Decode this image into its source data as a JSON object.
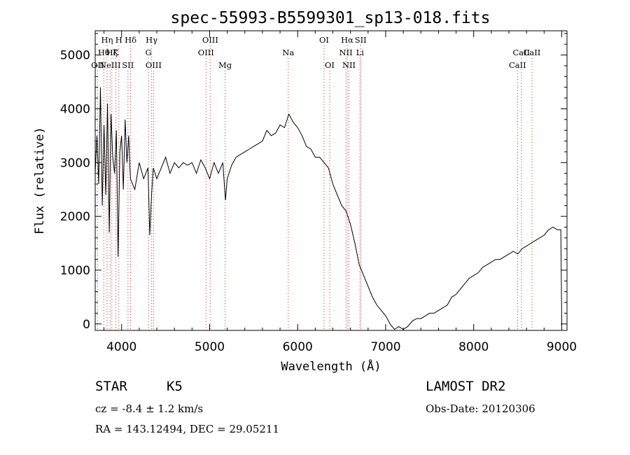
{
  "chart_data": {
    "type": "line",
    "title": "spec-55993-B5599301_sp13-018.fits",
    "xlabel": "Wavelength (Å)",
    "ylabel": "Flux (relative)",
    "xlim": [
      3700,
      9060
    ],
    "ylim": [
      -120,
      5450
    ],
    "xticks": [
      4000,
      5000,
      6000,
      7000,
      8000,
      9000
    ],
    "yticks": [
      0,
      1000,
      2000,
      3000,
      4000,
      5000
    ],
    "grid": false,
    "series": [
      {
        "color": "#000000",
        "x": [
          3700,
          3720,
          3740,
          3760,
          3780,
          3800,
          3820,
          3840,
          3860,
          3880,
          3900,
          3920,
          3940,
          3960,
          3980,
          4000,
          4020,
          4040,
          4060,
          4080,
          4100,
          4150,
          4200,
          4250,
          4300,
          4320,
          4340,
          4360,
          4400,
          4450,
          4500,
          4550,
          4600,
          4650,
          4700,
          4750,
          4800,
          4850,
          4900,
          4950,
          5000,
          5050,
          5100,
          5150,
          5180,
          5200,
          5250,
          5300,
          5350,
          5400,
          5450,
          5500,
          5550,
          5600,
          5650,
          5700,
          5750,
          5800,
          5850,
          5900,
          5950,
          6000,
          6050,
          6100,
          6150,
          6200,
          6250,
          6300,
          6350,
          6400,
          6450,
          6500,
          6550,
          6600,
          6650,
          6700,
          6750,
          6800,
          6850,
          6900,
          6950,
          7000,
          7050,
          7100,
          7150,
          7200,
          7250,
          7300,
          7350,
          7400,
          7450,
          7500,
          7550,
          7600,
          7650,
          7700,
          7750,
          7800,
          7850,
          7900,
          7950,
          8000,
          8050,
          8100,
          8150,
          8200,
          8250,
          8300,
          8350,
          8400,
          8450,
          8500,
          8550,
          8600,
          8650,
          8700,
          8750,
          8800,
          8850,
          8900,
          8950,
          8990,
          9000
        ],
        "y": [
          2800,
          3500,
          2600,
          4400,
          2200,
          3700,
          2400,
          4100,
          1700,
          3900,
          3100,
          2800,
          3600,
          1250,
          3200,
          3500,
          2500,
          3800,
          3000,
          3500,
          2700,
          2500,
          3000,
          2700,
          2900,
          1650,
          2400,
          2900,
          2700,
          2900,
          3100,
          2800,
          3000,
          2900,
          3000,
          2950,
          3000,
          2800,
          3050,
          2900,
          2700,
          3000,
          2800,
          3000,
          2300,
          2700,
          2950,
          3100,
          3150,
          3200,
          3250,
          3300,
          3350,
          3400,
          3600,
          3500,
          3550,
          3700,
          3650,
          3900,
          3750,
          3650,
          3500,
          3300,
          3250,
          3100,
          3100,
          3000,
          2900,
          2600,
          2400,
          2200,
          2100,
          1850,
          1500,
          1100,
          900,
          700,
          500,
          350,
          250,
          150,
          0,
          -100,
          -50,
          -100,
          -50,
          50,
          100,
          100,
          150,
          200,
          200,
          250,
          300,
          350,
          500,
          550,
          650,
          750,
          850,
          900,
          950,
          1050,
          1100,
          1150,
          1200,
          1200,
          1250,
          1300,
          1350,
          1300,
          1400,
          1450,
          1500,
          1550,
          1600,
          1650,
          1750,
          1800,
          1750,
          1750,
          0
        ]
      }
    ],
    "line_markers": [
      {
        "x": 3727,
        "label": "OII",
        "row": 3
      },
      {
        "x": 3798,
        "label": "Hθ",
        "row": 2
      },
      {
        "x": 3835,
        "label": "Hη",
        "row": 1
      },
      {
        "x": 3869,
        "label": "NeIII",
        "row": 3
      },
      {
        "x": 3889,
        "label": "Hζ",
        "row": 2
      },
      {
        "x": 3934,
        "label": "K",
        "row": 2
      },
      {
        "x": 3969,
        "label": "H",
        "row": 1
      },
      {
        "x": 4072,
        "label": "SII",
        "row": 3
      },
      {
        "x": 4102,
        "label": "Hδ",
        "row": 1
      },
      {
        "x": 4305,
        "label": "G",
        "row": 2
      },
      {
        "x": 4341,
        "label": "Hγ",
        "row": 1
      },
      {
        "x": 4363,
        "label": "OIII",
        "row": 3
      },
      {
        "x": 4959,
        "label": "OIII",
        "row": 2
      },
      {
        "x": 5007,
        "label": "OIII",
        "row": 1
      },
      {
        "x": 5176,
        "label": "Mg",
        "row": 3
      },
      {
        "x": 5893,
        "label": "Na",
        "row": 2
      },
      {
        "x": 6300,
        "label": "OI",
        "row": 1
      },
      {
        "x": 6364,
        "label": "OI",
        "row": 3
      },
      {
        "x": 6548,
        "label": "NII",
        "row": 2
      },
      {
        "x": 6563,
        "label": "Hα",
        "row": 1
      },
      {
        "x": 6583,
        "label": "NII",
        "row": 3
      },
      {
        "x": 6708,
        "label": "Li",
        "row": 2
      },
      {
        "x": 6716,
        "label": "SII",
        "row": 1
      },
      {
        "x": 8498,
        "label": "CaII",
        "row": 3
      },
      {
        "x": 8542,
        "label": "CaII",
        "row": 2
      },
      {
        "x": 8662,
        "label": "CaII",
        "row": 2
      }
    ]
  },
  "info": {
    "object_class": "STAR",
    "subclass": "K5",
    "redshift": "cz = -8.4 ± 1.2 km/s",
    "coords": "RA = 143.12494, DEC =  29.05211",
    "survey": "LAMOST DR2",
    "obs_date": "Obs-Date: 20120306"
  }
}
